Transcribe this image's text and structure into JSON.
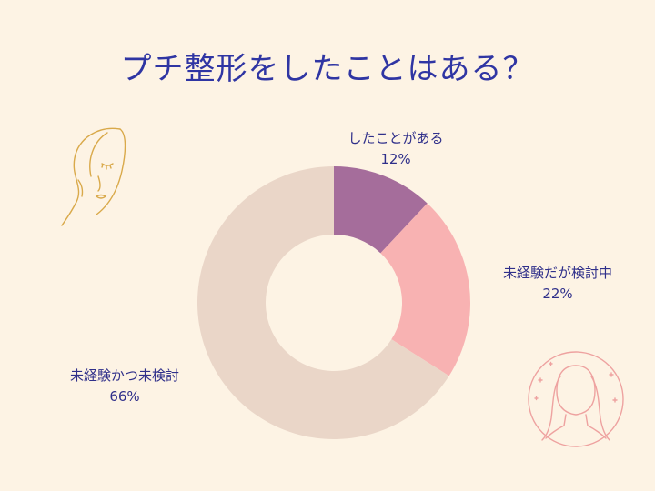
{
  "title": "プチ整形をしたことはある？",
  "chart_data": {
    "type": "pie",
    "donut": true,
    "slices": [
      {
        "label": "したことがある",
        "value": 12,
        "value_label": "12%",
        "color": "#a56d9b"
      },
      {
        "label": "未経験だが検討中",
        "value": 22,
        "value_label": "22%",
        "color": "#f8b2b2"
      },
      {
        "label": "未経験かつ未検討",
        "value": 66,
        "value_label": "66%",
        "color": "#ead6c8"
      }
    ]
  },
  "decorations": {
    "left_icon": "woman-face-line-art-icon",
    "right_icon": "woman-portrait-circle-icon",
    "line_color": "#d9a94a",
    "portrait_color": "#eea2a0"
  }
}
